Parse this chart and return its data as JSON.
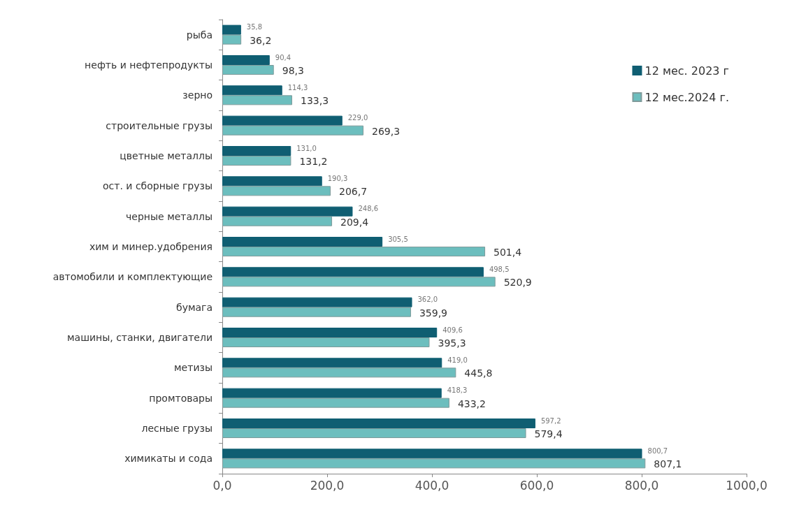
{
  "chart_data": {
    "type": "bar",
    "orientation": "horizontal",
    "categories": [
      "рыба",
      "нефть и нефтепродукты",
      "зерно",
      "строительные грузы",
      "цветные металлы",
      "ост. и сборные грузы",
      "черные металлы",
      "хим и минер.удобрения",
      "автомобили и комплектующие",
      "бумага",
      "машины, станки, двигатели",
      "метизы",
      "промтовары",
      "лесные грузы",
      "химикаты и сода"
    ],
    "series": [
      {
        "name": "12 мес. 2023 г",
        "color": "#0f5e72",
        "values": [
          35.8,
          90.4,
          114.3,
          229.0,
          131.0,
          190.3,
          248.6,
          305.5,
          498.5,
          362.0,
          409.6,
          419.0,
          418.3,
          597.2,
          800.7
        ],
        "value_labels": [
          "35,8",
          "90,4",
          "114,3",
          "229,0",
          "131,0",
          "190,3",
          "248,6",
          "305,5",
          "498,5",
          "362,0",
          "409,6",
          "419,0",
          "418,3",
          "597,2",
          "800,7"
        ]
      },
      {
        "name": "12 мес.2024 г.",
        "color": "#6cbebe",
        "values": [
          36.2,
          98.3,
          133.3,
          269.3,
          131.2,
          206.7,
          209.4,
          501.4,
          520.9,
          359.9,
          395.3,
          445.8,
          433.2,
          579.4,
          807.1
        ],
        "value_labels": [
          "36,2",
          "98,3",
          "133,3",
          "269,3",
          "131,2",
          "206,7",
          "209,4",
          "501,4",
          "520,9",
          "359,9",
          "395,3",
          "445,8",
          "433,2",
          "579,4",
          "807,1"
        ]
      }
    ],
    "xlim": [
      0,
      1000
    ],
    "xticks": [
      {
        "value": 0,
        "label": "0,0"
      },
      {
        "value": 200,
        "label": "200,0"
      },
      {
        "value": 400,
        "label": "400,0"
      },
      {
        "value": 600,
        "label": "600,0"
      },
      {
        "value": 800,
        "label": "800,0"
      },
      {
        "value": 1000,
        "label": "1000,0"
      }
    ],
    "grid": false,
    "legend": "top right"
  }
}
